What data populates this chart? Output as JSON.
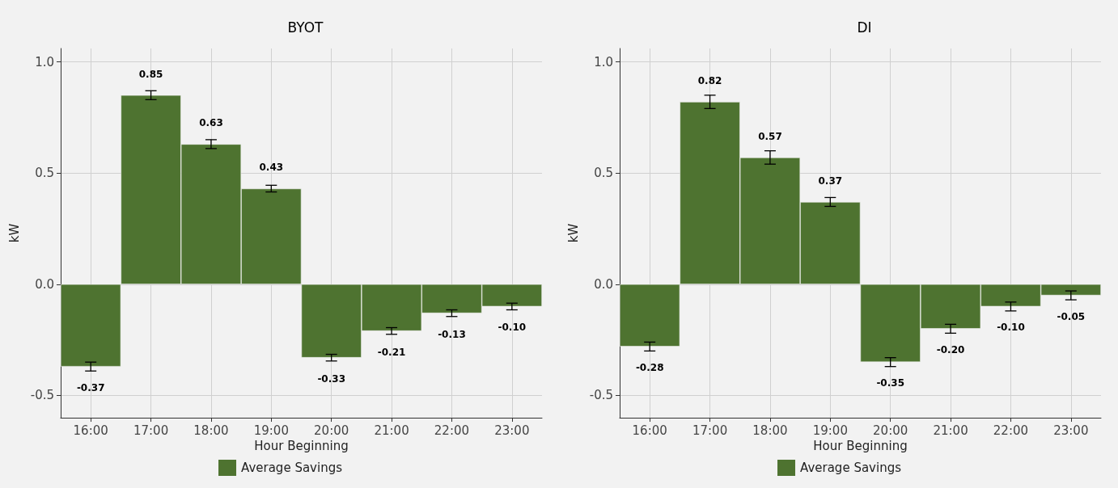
{
  "chart_data": [
    {
      "type": "bar",
      "title": "BYOT",
      "xlabel": "Hour Beginning",
      "ylabel": "kW",
      "categories": [
        "16:00",
        "17:00",
        "18:00",
        "19:00",
        "20:00",
        "21:00",
        "22:00",
        "23:00"
      ],
      "series": [
        {
          "name": "Average Savings",
          "color": "#4e7330",
          "values": [
            -0.37,
            0.85,
            0.63,
            0.43,
            -0.33,
            -0.21,
            -0.13,
            -0.1
          ],
          "errors": [
            0.02,
            0.02,
            0.02,
            0.015,
            0.015,
            0.015,
            0.015,
            0.015
          ],
          "value_labels": [
            "-0.37",
            "0.85",
            "0.63",
            "0.43",
            "-0.33",
            "-0.21",
            "-0.13",
            "-0.10"
          ]
        }
      ],
      "ylim": [
        -0.6,
        1.06
      ],
      "yticks": [
        {
          "value": -0.5,
          "label": "-0.5"
        },
        {
          "value": 0,
          "label": "0.0"
        },
        {
          "value": 0.5,
          "label": "0.5"
        },
        {
          "value": 1,
          "label": "1.0"
        }
      ],
      "grid": true,
      "legend": "bottom"
    },
    {
      "type": "bar",
      "title": "DI",
      "xlabel": "Hour Beginning",
      "ylabel": "kW",
      "categories": [
        "16:00",
        "17:00",
        "18:00",
        "19:00",
        "20:00",
        "21:00",
        "22:00",
        "23:00"
      ],
      "series": [
        {
          "name": "Average Savings",
          "color": "#4e7330",
          "values": [
            -0.28,
            0.82,
            0.57,
            0.37,
            -0.35,
            -0.2,
            -0.1,
            -0.05
          ],
          "errors": [
            0.02,
            0.03,
            0.03,
            0.02,
            0.02,
            0.02,
            0.02,
            0.02
          ],
          "value_labels": [
            "-0.28",
            "0.82",
            "0.57",
            "0.37",
            "-0.35",
            "-0.20",
            "-0.10",
            "-0.05"
          ]
        }
      ],
      "ylim": [
        -0.6,
        1.06
      ],
      "yticks": [
        {
          "value": -0.5,
          "label": "-0.5"
        },
        {
          "value": 0,
          "label": "0.0"
        },
        {
          "value": 0.5,
          "label": "0.5"
        },
        {
          "value": 1,
          "label": "1.0"
        }
      ],
      "grid": true,
      "legend": "bottom"
    }
  ]
}
